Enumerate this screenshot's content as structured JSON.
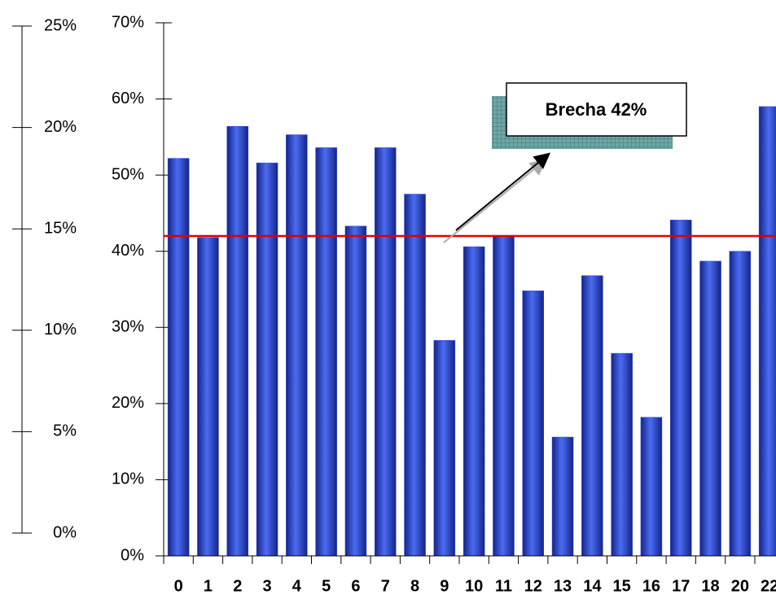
{
  "chart_data": {
    "type": "bar",
    "categories": [
      "0",
      "1",
      "2",
      "3",
      "4",
      "5",
      "6",
      "7",
      "8",
      "9",
      "10",
      "11",
      "12",
      "13",
      "14",
      "15",
      "16",
      "17",
      "18",
      "20",
      "22"
    ],
    "values": [
      52.2,
      41.8,
      56.4,
      51.6,
      55.3,
      53.6,
      43.3,
      53.6,
      47.5,
      28.3,
      40.6,
      42.0,
      34.8,
      15.6,
      36.8,
      26.6,
      18.2,
      44.1,
      38.7,
      40.0,
      59.0
    ],
    "color": "#2b47d6",
    "ylim": [
      0,
      70
    ],
    "yticks": [
      {
        "value": 0,
        "label": "0%"
      },
      {
        "value": 10,
        "label": "10%"
      },
      {
        "value": 20,
        "label": "20%"
      },
      {
        "value": 30,
        "label": "30%"
      },
      {
        "value": 40,
        "label": "40%"
      },
      {
        "value": 50,
        "label": "50%"
      },
      {
        "value": 60,
        "label": "60%"
      },
      {
        "value": 70,
        "label": "70%"
      }
    ],
    "y2lim": [
      0,
      25
    ],
    "y2ticks": [
      {
        "value": 0,
        "label": "0%"
      },
      {
        "value": 5,
        "label": "5%"
      },
      {
        "value": 10,
        "label": "10%"
      },
      {
        "value": 15,
        "label": "15%"
      },
      {
        "value": 20,
        "label": "20%"
      },
      {
        "value": 25,
        "label": "25%"
      }
    ],
    "reference_line": {
      "value": 42,
      "color": "#e00000"
    },
    "annotation": {
      "text": "Brecha 42%",
      "color": "#ff3300"
    }
  }
}
